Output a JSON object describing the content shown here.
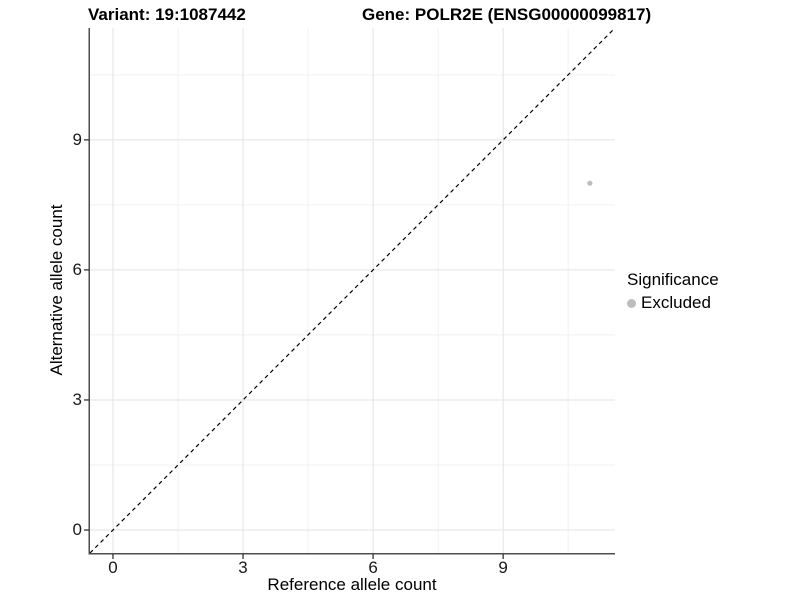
{
  "title": {
    "variant_label": "Variant: 19:1087442",
    "gene_label": "Gene: POLR2E (ENSG00000099817)"
  },
  "chart_data": {
    "type": "scatter",
    "title": "Variant: 19:1087442   Gene: POLR2E (ENSG00000099817)",
    "xlabel": "Reference allele count",
    "ylabel": "Alternative allele count",
    "xlim": [
      -0.53,
      11.58
    ],
    "ylim": [
      -0.53,
      11.58
    ],
    "x_ticks": [
      0,
      3,
      6,
      9
    ],
    "y_ticks": [
      0,
      3,
      6,
      9
    ],
    "x_minor_ticks": [
      1.5,
      4.5,
      7.5,
      10.5
    ],
    "y_minor_ticks": [
      1.5,
      4.5,
      7.5,
      10.5
    ],
    "grid": true,
    "series": [
      {
        "name": "Excluded",
        "color": "#bdbdbd",
        "points": [
          {
            "x": 11,
            "y": 8
          }
        ]
      }
    ],
    "reference_line": {
      "type": "abline",
      "slope": 1,
      "intercept": 0,
      "style": "dashed",
      "color": "#000000"
    },
    "legend": {
      "title": "Significance",
      "position": "right",
      "entries": [
        {
          "label": "Excluded",
          "color": "#bdbdbd",
          "marker": "circle"
        }
      ]
    },
    "style": {
      "background": "#ffffff",
      "grid_major_color": "#e3e3e3",
      "grid_minor_color": "#f1f1f1",
      "axis_line_color": "#4d4d4d",
      "tick_color": "#333333"
    }
  }
}
